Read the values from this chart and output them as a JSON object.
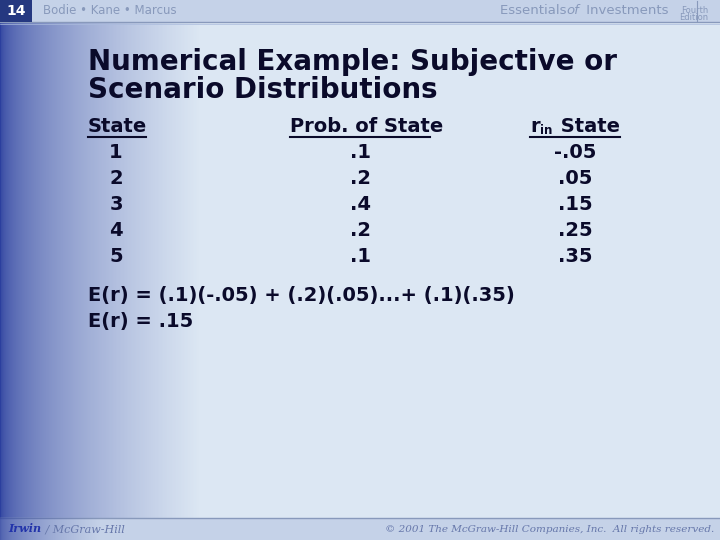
{
  "slide_num": "14",
  "header_left": "Bodie • Kane • Marcus",
  "header_right_normal": "Essentials ",
  "header_right_italic": "of",
  "header_right_normal2": " Investments",
  "header_right_line1": "Fourth",
  "header_right_line2": "Edition",
  "title_line1": "Numerical Example: Subjective or",
  "title_line2": "Scenario Distributions",
  "states": [
    "1",
    "2",
    "3",
    "4",
    "5"
  ],
  "probs": [
    ".1",
    ".2",
    ".4",
    ".2",
    ".1"
  ],
  "returns": [
    "-.05",
    ".05",
    ".15",
    ".25",
    ".35"
  ],
  "equation1": "E(r) = (.1)(-.05) + (.2)(.05)...+ (.1)(.35)",
  "equation2": "E(r) = .15",
  "footer_left1": "Irwin",
  "footer_left2": " / McGraw-Hill",
  "footer_right": "© 2001 The McGraw-Hill Companies, Inc.  All rights reserved.",
  "sidebar_color": "#2b3f9e",
  "header_bg": "#c8d4e8",
  "main_bg": "#dce7f3",
  "footer_bg": "#c0cfe6",
  "text_dark": "#0a0a3a",
  "text_header": "#7080a0",
  "text_footer": "#4455aa",
  "title_color": "#0a0a2a"
}
